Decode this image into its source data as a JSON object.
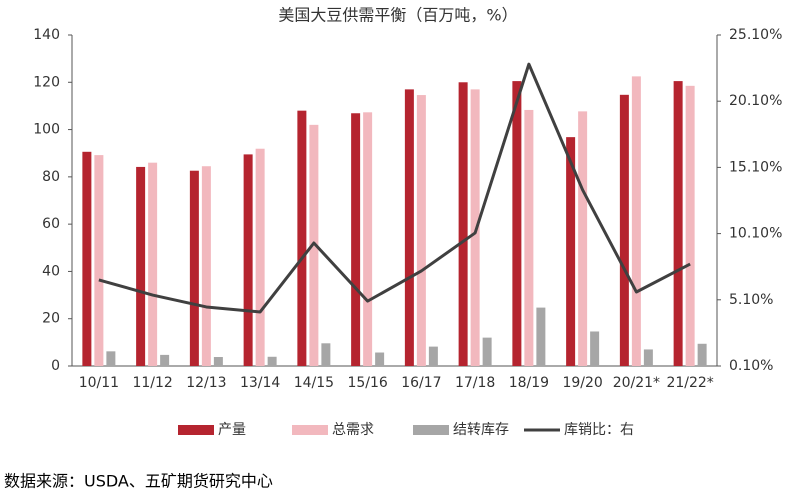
{
  "chart_data": {
    "type": "bar",
    "title": "美国大豆供需平衡（百万吨，%）",
    "categories": [
      "10/11",
      "11/12",
      "12/13",
      "13/14",
      "14/15",
      "15/16",
      "16/17",
      "17/18",
      "18/19",
      "19/20",
      "20/21*",
      "21/22*"
    ],
    "series": [
      {
        "name": "产量",
        "color": "#b5242f",
        "type": "bar",
        "values": [
          90.6,
          84.2,
          82.6,
          89.5,
          108,
          106.9,
          117,
          120,
          120.5,
          96.8,
          114.7,
          120.5
        ]
      },
      {
        "name": "总需求",
        "color": "#f2b8be",
        "type": "bar",
        "values": [
          89.2,
          86,
          84.5,
          91.9,
          102,
          107.3,
          114.6,
          117,
          108.3,
          107.7,
          122.5,
          118.5
        ]
      },
      {
        "name": "结转库存",
        "color": "#a6a6a6",
        "type": "bar",
        "values": [
          6.2,
          4.7,
          3.8,
          3.9,
          9.6,
          5.7,
          8.2,
          12,
          24.7,
          14.6,
          7,
          9.4
        ]
      },
      {
        "name": "库销比：右",
        "color": "#404040",
        "type": "line",
        "axis": "y2",
        "values": [
          6.6,
          5.46,
          4.56,
          4.18,
          9.39,
          5.0,
          7.28,
          10.15,
          22.9,
          13.4,
          5.69,
          7.8
        ]
      }
    ],
    "ylim": [
      0,
      140
    ],
    "yticks": [
      0,
      20,
      40,
      60,
      80,
      100,
      120,
      140
    ],
    "y2lim": [
      0.1,
      25.1
    ],
    "y2ticks": [
      {
        "value": 0.1,
        "label": "0.10%"
      },
      {
        "value": 5.1,
        "label": "5.10%"
      },
      {
        "value": 10.1,
        "label": "10.10%"
      },
      {
        "value": 15.1,
        "label": "15.10%"
      },
      {
        "value": 20.1,
        "label": "20.10%"
      },
      {
        "value": 25.1,
        "label": "25.10%"
      }
    ],
    "legend": "bottom",
    "source": "数据来源：USDA、五矿期货研究中心"
  }
}
